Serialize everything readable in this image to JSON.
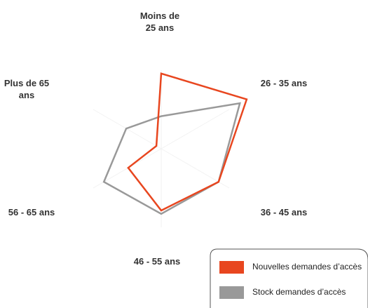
{
  "chart_data": {
    "type": "radar",
    "categories": [
      "Moins de 25 ans",
      "26 - 35 ans",
      "36 - 45 ans",
      "46 - 55 ans",
      "56 - 65 ans",
      "Plus de 65 ans"
    ],
    "series": [
      {
        "name": "Nouvelles demandes d’accès",
        "color": "#e8461f",
        "values": [
          67,
          88,
          59,
          55,
          34,
          5
        ]
      },
      {
        "name": "Stock demandes d’accès",
        "color": "#999999",
        "values": [
          29,
          81,
          59,
          58,
          59,
          36
        ]
      }
    ],
    "ylim": [
      0,
      100
    ]
  }
}
